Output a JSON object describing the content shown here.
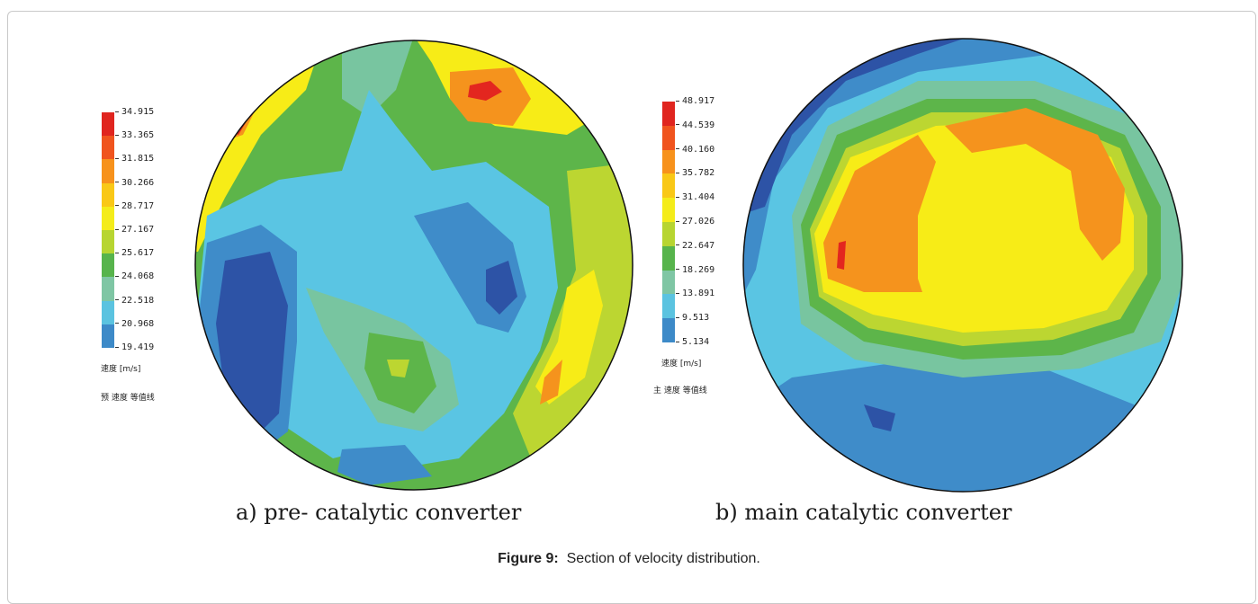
{
  "figure": {
    "label": "Figure 9:",
    "caption": "Section of velocity distribution."
  },
  "panels": [
    {
      "subcaption": "a) pre- catalytic converter",
      "legend": {
        "ticks": [
          "34.915",
          "33.365",
          "31.815",
          "30.266",
          "28.717",
          "27.167",
          "25.617",
          "24.068",
          "22.518",
          "20.968",
          "19.419"
        ],
        "unit": "速度 [m/s]",
        "contour_title": "预 速度 等值线",
        "colors": [
          "#e0251f",
          "#f0541e",
          "#f7921c",
          "#f9c817",
          "#f4ec1a",
          "#b7d531",
          "#57b44c",
          "#7fc6a4",
          "#5bc3e0",
          "#3d8ac8",
          "#2f56a8"
        ]
      }
    },
    {
      "subcaption": "b) main catalytic converter",
      "legend": {
        "ticks": [
          "48.917",
          "44.539",
          "40.160",
          "35.782",
          "31.404",
          "27.026",
          "22.647",
          "18.269",
          "13.891",
          "9.513",
          "5.134"
        ],
        "unit": "速度 [m/s]",
        "contour_title": "主 速度 等值线",
        "colors": [
          "#e0251f",
          "#f0541e",
          "#f7921c",
          "#f9c817",
          "#f4ec1a",
          "#b7d531",
          "#57b44c",
          "#7fc6a4",
          "#5bc3e0",
          "#3d8ac8",
          "#2f56a8"
        ]
      }
    }
  ],
  "palette": {
    "red": "#e3261f",
    "orange": "#f5931d",
    "yellow": "#f7ec17",
    "yellowgreen": "#bcd631",
    "green": "#5db54a",
    "teal": "#78c5a0",
    "lightblue": "#5ac5e3",
    "blue": "#3f8cc9",
    "darkblue": "#2d53a6"
  }
}
